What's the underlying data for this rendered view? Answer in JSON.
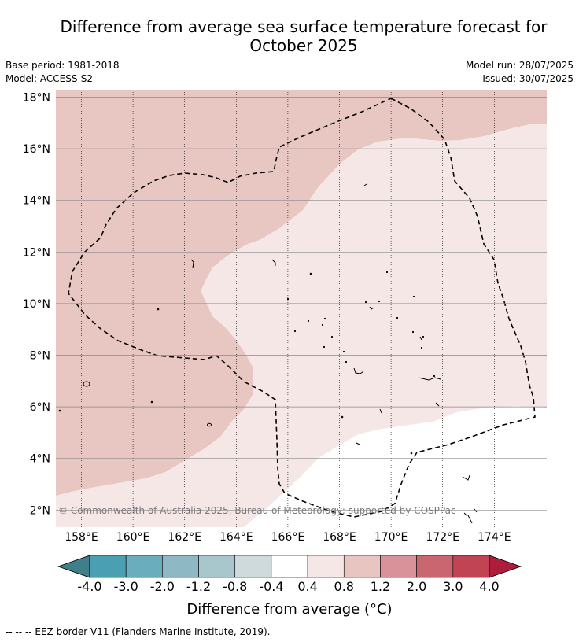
{
  "title_line1": "Difference from average sea surface temperature forecast for",
  "title_line2": "October 2025",
  "base_period": "Base period: 1981-2018",
  "model": "Model: ACCESS-S2",
  "model_run": "Model run: 28/07/2025",
  "issued": "Issued: 30/07/2025",
  "copyright": "© Commonwealth of Australia 2025, Bureau of Meteorology; supported by COSPPac",
  "colorbar_label": "Difference from average (°C)",
  "footer": "--  --  -- EEZ border V11 (Flanders Marine Institute, 2019).",
  "lon_labels": [
    "158°E",
    "160°E",
    "162°E",
    "164°E",
    "166°E",
    "168°E",
    "170°E",
    "172°E",
    "174°E"
  ],
  "lat_labels": [
    "18°N",
    "16°N",
    "14°N",
    "12°N",
    "10°N",
    "8°N",
    "6°N",
    "4°N",
    "2°N"
  ],
  "colorbar_ticks": [
    "-4.0",
    "-3.0",
    "-2.0",
    "-1.2",
    "-0.8",
    "-0.4",
    "0.4",
    "0.8",
    "1.2",
    "2.0",
    "3.0",
    "4.0"
  ],
  "colorbar_colors": [
    "#3f7f89",
    "#4aa0b2",
    "#6aaebe",
    "#8db8c4",
    "#a8c7cc",
    "#cfdadd",
    "#ffffff",
    "#f4e7e6",
    "#e9c5c1",
    "#d9919a",
    "#ca6670",
    "#c04454",
    "#b01d3c"
  ],
  "map_fill": {
    "band_0_8_to_1_2": "#e8c6c1",
    "band_0_4_to_0_8": "#f4e7e6",
    "band_neutral": "#ffffff"
  }
}
